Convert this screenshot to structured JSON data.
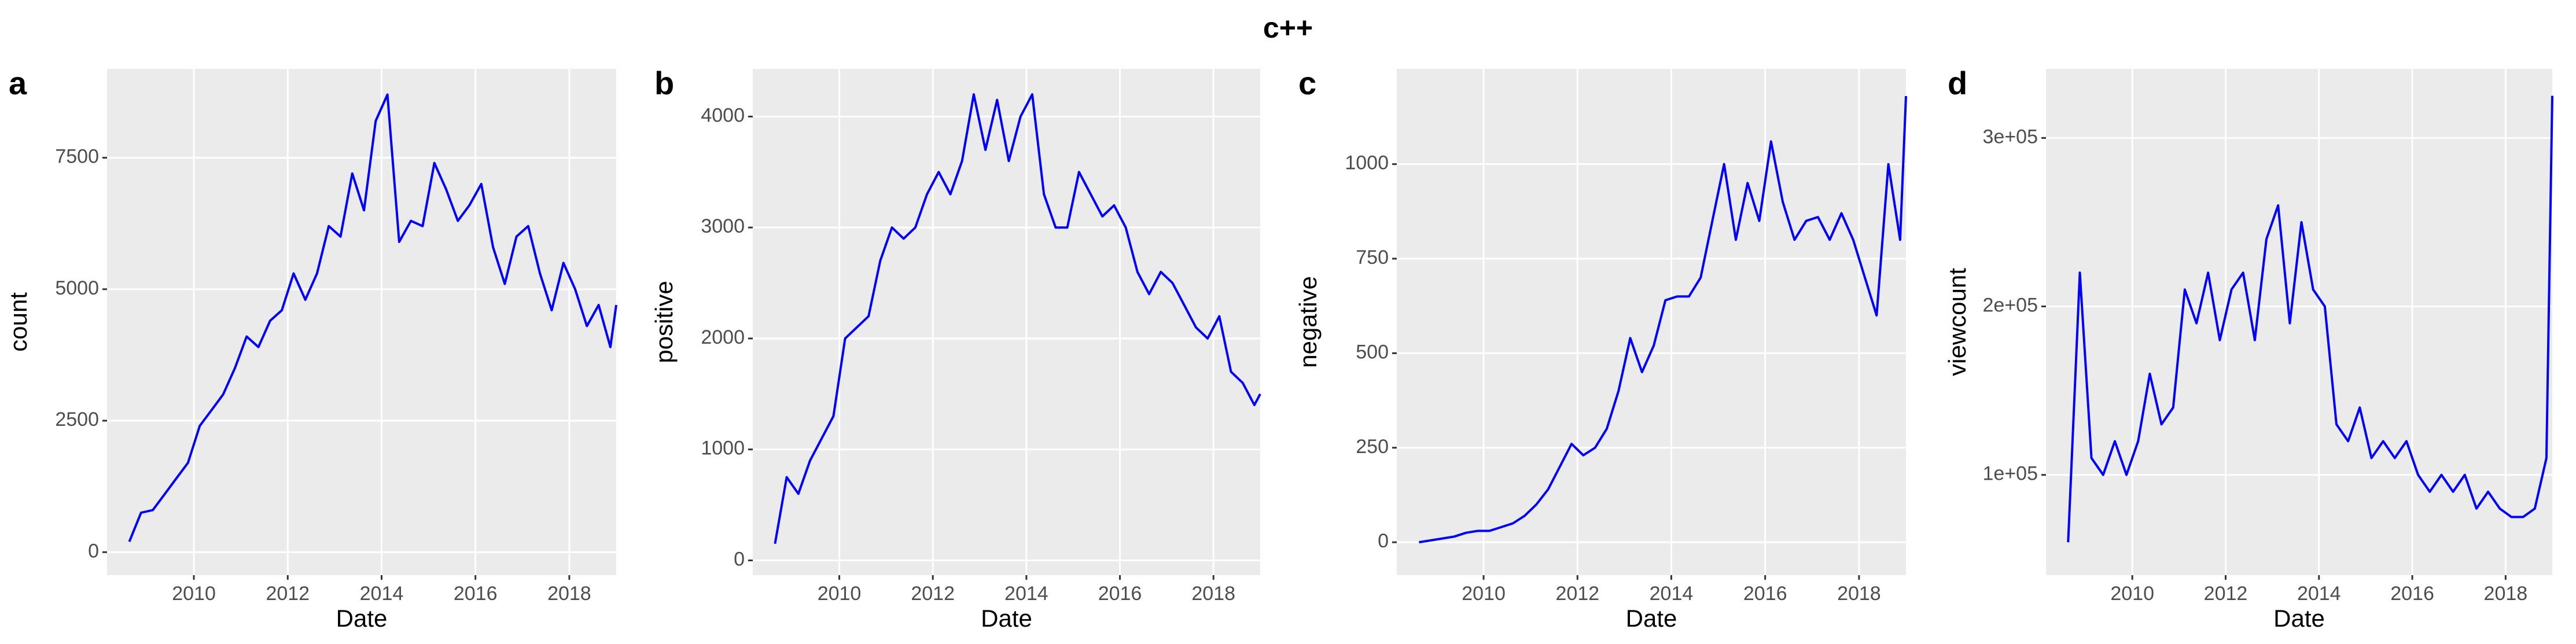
{
  "title": "c++",
  "chart_data": [
    {
      "type": "line",
      "panel_label": "a",
      "xlabel": "Date",
      "ylabel": "count",
      "color": "#0000ff",
      "x": [
        2008.625,
        2008.875,
        2009.125,
        2009.375,
        2009.625,
        2009.875,
        2010.125,
        2010.375,
        2010.625,
        2010.875,
        2011.125,
        2011.375,
        2011.625,
        2011.875,
        2012.125,
        2012.375,
        2012.625,
        2012.875,
        2013.125,
        2013.375,
        2013.625,
        2013.875,
        2014.125,
        2014.375,
        2014.625,
        2014.875,
        2015.125,
        2015.375,
        2015.625,
        2015.875,
        2016.125,
        2016.375,
        2016.625,
        2016.875,
        2017.125,
        2017.375,
        2017.625,
        2017.875,
        2018.125,
        2018.375,
        2018.625,
        2018.875,
        2019.0
      ],
      "values": [
        200,
        750,
        800,
        1100,
        1400,
        1700,
        2400,
        2700,
        3000,
        3500,
        4100,
        3900,
        4400,
        4600,
        5300,
        4800,
        5300,
        6200,
        6000,
        7200,
        6500,
        8200,
        8700,
        5900,
        6300,
        6200,
        7400,
        6900,
        6300,
        6600,
        7000,
        5800,
        5100,
        6000,
        6200,
        5300,
        4600,
        5500,
        5000,
        4300,
        4700,
        3900,
        4700
      ],
      "xlim": [
        2008.15,
        2019.0
      ],
      "ylim": [
        -437,
        9190
      ],
      "xticks": [
        2010,
        2012,
        2014,
        2016,
        2018
      ],
      "yticks": [
        0,
        2500,
        5000,
        7500
      ],
      "grid": true
    },
    {
      "type": "line",
      "panel_label": "b",
      "xlabel": "Date",
      "ylabel": "positive",
      "color": "#0000ff",
      "x": [
        2008.625,
        2008.875,
        2009.125,
        2009.375,
        2009.625,
        2009.875,
        2010.125,
        2010.375,
        2010.625,
        2010.875,
        2011.125,
        2011.375,
        2011.625,
        2011.875,
        2012.125,
        2012.375,
        2012.625,
        2012.875,
        2013.125,
        2013.375,
        2013.625,
        2013.875,
        2014.125,
        2014.375,
        2014.625,
        2014.875,
        2015.125,
        2015.375,
        2015.625,
        2015.875,
        2016.125,
        2016.375,
        2016.625,
        2016.875,
        2017.125,
        2017.375,
        2017.625,
        2017.875,
        2018.125,
        2018.375,
        2018.625,
        2018.875,
        2019.0
      ],
      "values": [
        150,
        750,
        600,
        900,
        1100,
        1300,
        2000,
        2100,
        2200,
        2700,
        3000,
        2900,
        3000,
        3300,
        3500,
        3300,
        3600,
        4200,
        3700,
        4150,
        3600,
        4000,
        4200,
        3300,
        3000,
        3000,
        3500,
        3300,
        3100,
        3200,
        3000,
        2600,
        2400,
        2600,
        2500,
        2300,
        2100,
        2000,
        2200,
        1700,
        1600,
        1400,
        1500
      ],
      "xlim": [
        2008.15,
        2019.0
      ],
      "ylim": [
        -133,
        4430
      ],
      "xticks": [
        2010,
        2012,
        2014,
        2016,
        2018
      ],
      "yticks": [
        0,
        1000,
        2000,
        3000,
        4000
      ],
      "grid": true
    },
    {
      "type": "line",
      "panel_label": "c",
      "xlabel": "Date",
      "ylabel": "negative",
      "color": "#0000ff",
      "x": [
        2008.625,
        2008.875,
        2009.125,
        2009.375,
        2009.625,
        2009.875,
        2010.125,
        2010.375,
        2010.625,
        2010.875,
        2011.125,
        2011.375,
        2011.625,
        2011.875,
        2012.125,
        2012.375,
        2012.625,
        2012.875,
        2013.125,
        2013.375,
        2013.625,
        2013.875,
        2014.125,
        2014.375,
        2014.625,
        2014.875,
        2015.125,
        2015.375,
        2015.625,
        2015.875,
        2016.125,
        2016.375,
        2016.625,
        2016.875,
        2017.125,
        2017.375,
        2017.625,
        2017.875,
        2018.125,
        2018.375,
        2018.625,
        2018.875,
        2019.0
      ],
      "values": [
        0,
        5,
        10,
        15,
        25,
        30,
        30,
        40,
        50,
        70,
        100,
        140,
        200,
        260,
        230,
        250,
        300,
        400,
        540,
        450,
        520,
        640,
        650,
        650,
        700,
        850,
        1000,
        800,
        950,
        850,
        1060,
        900,
        800,
        850,
        860,
        800,
        870,
        800,
        700,
        600,
        1000,
        800,
        1180
      ],
      "xlim": [
        2008.15,
        2019.0
      ],
      "ylim": [
        -87,
        1252
      ],
      "xticks": [
        2010,
        2012,
        2014,
        2016,
        2018
      ],
      "yticks": [
        0,
        250,
        500,
        750,
        1000
      ],
      "grid": true
    },
    {
      "type": "line",
      "panel_label": "d",
      "xlabel": "Date",
      "ylabel": "viewcount",
      "color": "#0000ff",
      "x": [
        2008.625,
        2008.875,
        2009.125,
        2009.375,
        2009.625,
        2009.875,
        2010.125,
        2010.375,
        2010.625,
        2010.875,
        2011.125,
        2011.375,
        2011.625,
        2011.875,
        2012.125,
        2012.375,
        2012.625,
        2012.875,
        2013.125,
        2013.375,
        2013.625,
        2013.875,
        2014.125,
        2014.375,
        2014.625,
        2014.875,
        2015.125,
        2015.375,
        2015.625,
        2015.875,
        2016.125,
        2016.375,
        2016.625,
        2016.875,
        2017.125,
        2017.375,
        2017.625,
        2017.875,
        2018.125,
        2018.375,
        2018.625,
        2018.875,
        2019.0
      ],
      "values": [
        60000,
        220000,
        110000,
        100000,
        120000,
        100000,
        120000,
        160000,
        130000,
        140000,
        210000,
        190000,
        220000,
        180000,
        210000,
        220000,
        180000,
        240000,
        260000,
        190000,
        250000,
        210000,
        200000,
        130000,
        120000,
        140000,
        110000,
        120000,
        110000,
        120000,
        100000,
        90000,
        100000,
        90000,
        100000,
        80000,
        90000,
        80000,
        75000,
        75000,
        80000,
        110000,
        325000
      ],
      "xlim": [
        2008.15,
        2019.0
      ],
      "ylim": [
        40500,
        341000
      ],
      "xticks": [
        2010,
        2012,
        2014,
        2016,
        2018
      ],
      "yticks": [
        {
          "value": 100000,
          "label": "1e+05"
        },
        {
          "value": 200000,
          "label": "2e+05"
        },
        {
          "value": 300000,
          "label": "3e+05"
        }
      ],
      "grid": true
    }
  ]
}
